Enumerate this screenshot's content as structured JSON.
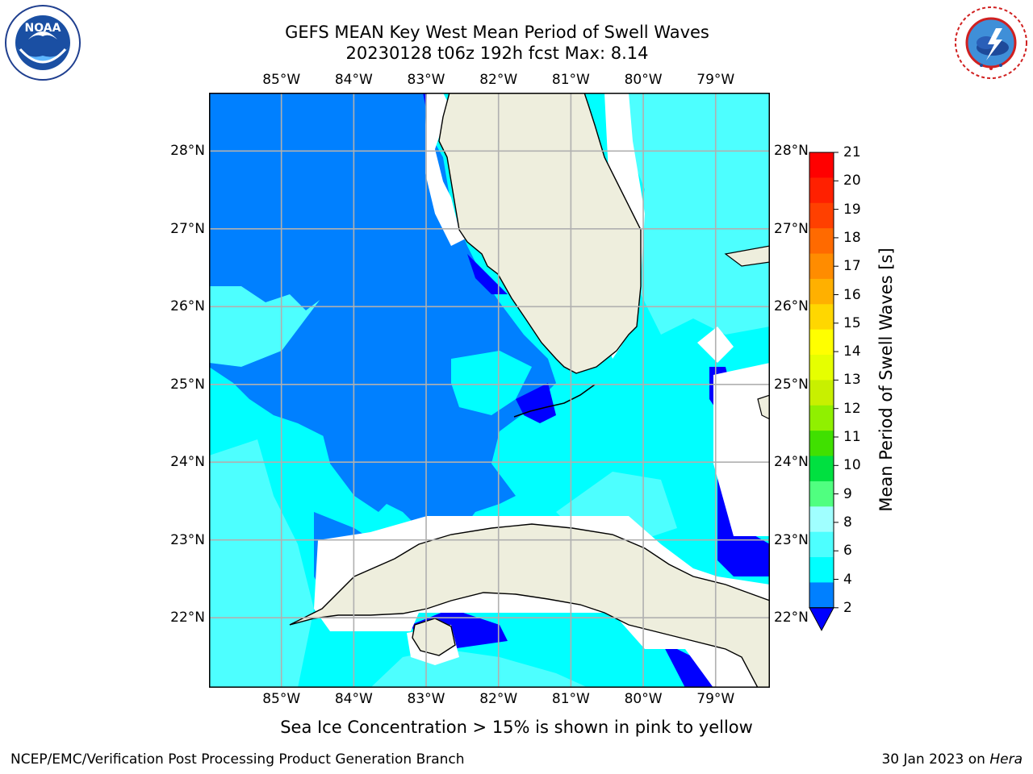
{
  "header": {
    "title_line1": "GEFS MEAN Key West Mean Period of Swell Waves",
    "title_line2": "20230128 t06z 192h fcst   Max: 8.14"
  },
  "logos": {
    "left": "noaa-logo",
    "right": "nws-logo",
    "noaa_text": "NOAA",
    "noaa_ring_text": "NATIONAL OCEANIC AND ATMOSPHERIC ADMINISTRATION · U.S. DEPARTMENT OF COMMERCE",
    "nws_ring_text": "NATIONAL WEATHER SERVICE"
  },
  "map": {
    "lon_labels": [
      "85°W",
      "84°W",
      "83°W",
      "82°W",
      "81°W",
      "80°W",
      "79°W"
    ],
    "lat_labels": [
      "28°N",
      "27°N",
      "26°N",
      "25°N",
      "24°N",
      "23°N",
      "22°N"
    ],
    "lon_range": [
      -86.0,
      -78.25
    ],
    "lat_range": [
      21.1,
      28.75
    ],
    "colors": {
      "land": "#eeeedd",
      "grid": "#b0b0b0",
      "level_2_4": "#0080ff",
      "level_4_6": "#00ffff",
      "level_6_8": "#4dffff",
      "below_2": "#0000ff",
      "missing": "#ffffff"
    }
  },
  "colorbar": {
    "title": "Mean Period of Swell Waves [s]",
    "labels": [
      "21",
      "20",
      "19",
      "18",
      "17",
      "16",
      "15",
      "14",
      "13",
      "12",
      "11",
      "10",
      "9",
      "8",
      "6",
      "4",
      "2"
    ],
    "colors": [
      "#ff0000",
      "#ff2000",
      "#ff4000",
      "#ff6a00",
      "#ff8c00",
      "#ffb000",
      "#ffd700",
      "#ffff00",
      "#e6ff00",
      "#c8f000",
      "#90f000",
      "#40e000",
      "#00e040",
      "#50ff80",
      "#a0ffff",
      "#4dffff",
      "#00ffff",
      "#0080ff"
    ],
    "extend_color": "#0000ff"
  },
  "note": "Sea Ice Concentration > 15% is shown in pink to yellow",
  "footer": {
    "left": "NCEP/EMC/Verification Post Processing Product Generation Branch",
    "right_date": "30 Jan 2023 on ",
    "right_host": "Hera"
  }
}
